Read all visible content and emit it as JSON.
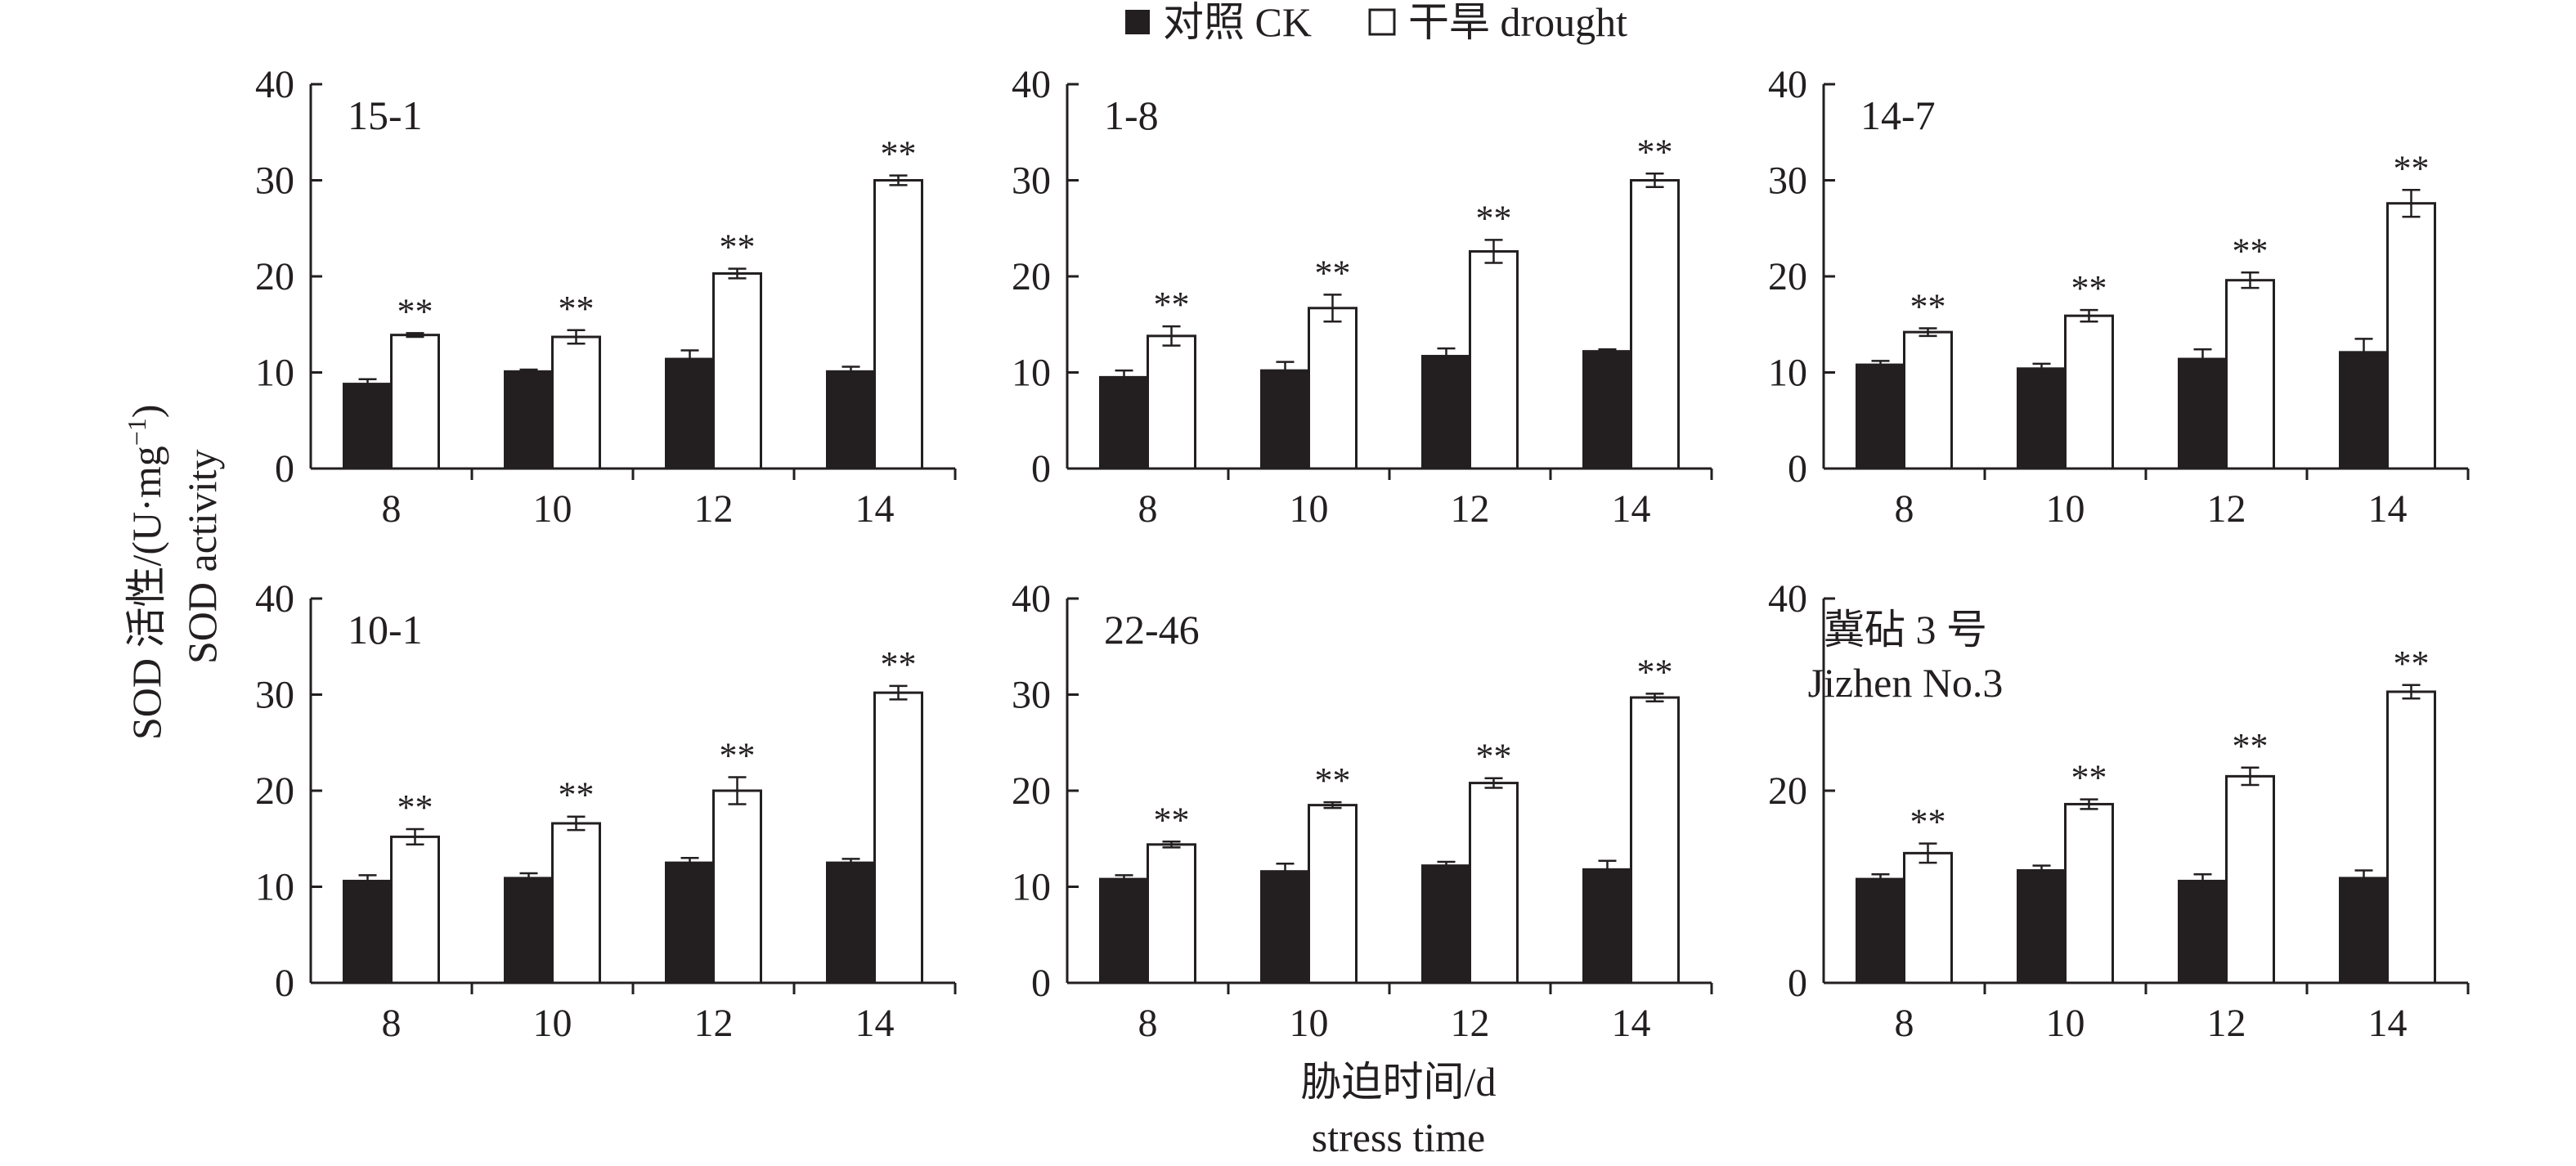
{
  "legend": {
    "ck": "对照 CK",
    "drought": "干旱 drought"
  },
  "ylabel": {
    "cn": "SOD 活性/(U·mg",
    "sup": "−1",
    "close": ")",
    "en": "SOD activity"
  },
  "xlabel": {
    "cn": "胁迫时间/d",
    "en": "stress time"
  },
  "colors": {
    "ck": "#231f20",
    "drought": "#ffffff",
    "stroke": "#231f20"
  },
  "chart_data": [
    {
      "type": "bar",
      "title": "15-1",
      "title2": "",
      "categories": [
        "8",
        "10",
        "12",
        "14"
      ],
      "ylim": [
        0,
        40
      ],
      "yticks": [
        "0",
        "10",
        "20",
        "30",
        "40"
      ],
      "series": [
        {
          "name": "对照 CK",
          "values": [
            8.8,
            10.1,
            11.4,
            10.1
          ],
          "errors": [
            0.5,
            0.2,
            0.9,
            0.5
          ]
        },
        {
          "name": "干旱 drought",
          "values": [
            13.9,
            13.7,
            20.3,
            30.0
          ],
          "errors": [
            0.2,
            0.7,
            0.5,
            0.5
          ]
        }
      ],
      "annotations": [
        "**",
        "**",
        "**",
        "**"
      ]
    },
    {
      "type": "bar",
      "title": "1-8",
      "title2": "",
      "categories": [
        "8",
        "10",
        "12",
        "14"
      ],
      "ylim": [
        0,
        40
      ],
      "yticks": [
        "0",
        "10",
        "20",
        "30",
        "40"
      ],
      "series": [
        {
          "name": "对照 CK",
          "values": [
            9.5,
            10.2,
            11.7,
            12.2
          ],
          "errors": [
            0.7,
            0.9,
            0.8,
            0.2
          ]
        },
        {
          "name": "干旱 drought",
          "values": [
            13.8,
            16.7,
            22.6,
            30.0
          ],
          "errors": [
            1.0,
            1.4,
            1.2,
            0.7
          ]
        }
      ],
      "annotations": [
        "**",
        "**",
        "**",
        "**"
      ]
    },
    {
      "type": "bar",
      "title": "14-7",
      "title2": "",
      "categories": [
        "8",
        "10",
        "12",
        "14"
      ],
      "ylim": [
        0,
        40
      ],
      "yticks": [
        "0",
        "10",
        "20",
        "30",
        "40"
      ],
      "series": [
        {
          "name": "对照 CK",
          "values": [
            10.8,
            10.4,
            11.4,
            12.1
          ],
          "errors": [
            0.4,
            0.5,
            1.0,
            1.4
          ]
        },
        {
          "name": "干旱 drought",
          "values": [
            14.2,
            15.9,
            19.6,
            27.6
          ],
          "errors": [
            0.4,
            0.6,
            0.8,
            1.4
          ]
        }
      ],
      "annotations": [
        "**",
        "**",
        "**",
        "**"
      ]
    },
    {
      "type": "bar",
      "title": "10-1",
      "title2": "",
      "categories": [
        "8",
        "10",
        "12",
        "14"
      ],
      "ylim": [
        0,
        40
      ],
      "yticks": [
        "0",
        "10",
        "20",
        "30",
        "40"
      ],
      "series": [
        {
          "name": "对照 CK",
          "values": [
            10.6,
            10.9,
            12.5,
            12.5
          ],
          "errors": [
            0.6,
            0.5,
            0.5,
            0.4
          ]
        },
        {
          "name": "干旱 drought",
          "values": [
            15.2,
            16.6,
            20.0,
            30.2
          ],
          "errors": [
            0.8,
            0.7,
            1.4,
            0.7
          ]
        }
      ],
      "annotations": [
        "**",
        "**",
        "**",
        "**"
      ]
    },
    {
      "type": "bar",
      "title": "22-46",
      "title2": "",
      "categories": [
        "8",
        "10",
        "12",
        "14"
      ],
      "ylim": [
        0,
        40
      ],
      "yticks": [
        "0",
        "10",
        "20",
        "30",
        "40"
      ],
      "series": [
        {
          "name": "对照 CK",
          "values": [
            10.8,
            11.6,
            12.2,
            11.8
          ],
          "errors": [
            0.4,
            0.8,
            0.4,
            0.9
          ]
        },
        {
          "name": "干旱 drought",
          "values": [
            14.4,
            18.5,
            20.8,
            29.7
          ],
          "errors": [
            0.3,
            0.3,
            0.5,
            0.4
          ]
        }
      ],
      "annotations": [
        "**",
        "**",
        "**",
        "**"
      ]
    },
    {
      "type": "bar",
      "title": "冀砧 3 号",
      "title2": "Jizhen No.3",
      "categories": [
        "8",
        "10",
        "12",
        "14"
      ],
      "ylim": [
        0,
        40
      ],
      "yticks": [
        "0",
        "20",
        "40"
      ],
      "series": [
        {
          "name": "对照 CK",
          "values": [
            10.8,
            11.7,
            10.6,
            10.9
          ],
          "errors": [
            0.5,
            0.5,
            0.7,
            0.8
          ]
        },
        {
          "name": "干旱 drought",
          "values": [
            13.5,
            18.6,
            21.5,
            30.3
          ],
          "errors": [
            1.0,
            0.5,
            0.9,
            0.7
          ]
        }
      ],
      "annotations": [
        "**",
        "**",
        "**",
        "**"
      ]
    }
  ]
}
